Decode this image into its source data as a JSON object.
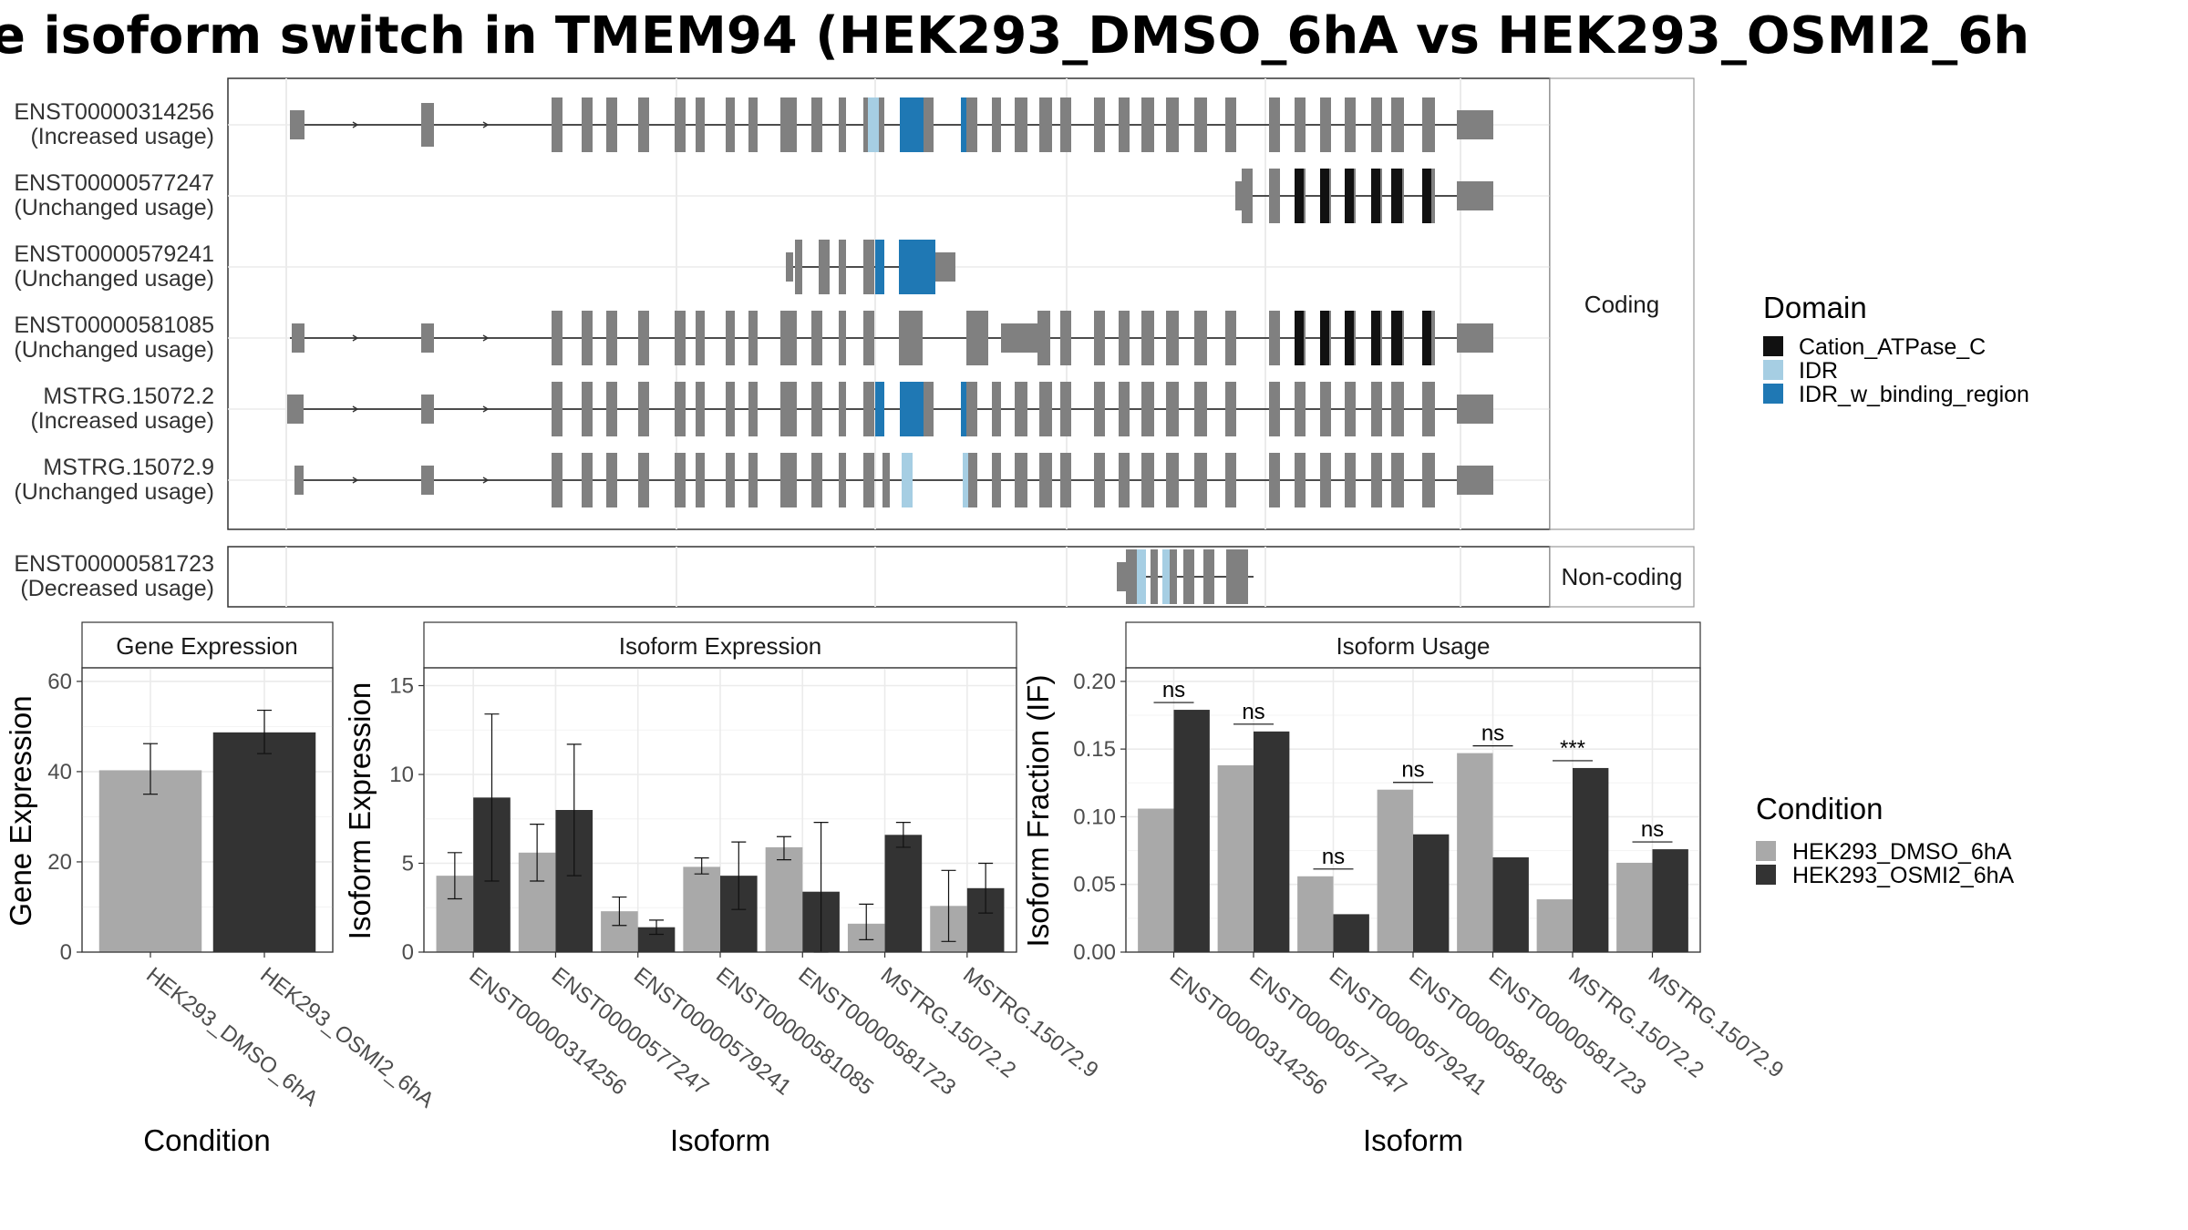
{
  "title": "e isoform switch in TMEM94 (HEK293_DMSO_6hA vs HEK293_OSMI2_6h",
  "transcripts": {
    "coding_label": "Coding",
    "noncoding_label": "Non-coding",
    "coding": [
      {
        "id": "ENST00000314256",
        "usage": "(Increased usage)"
      },
      {
        "id": "ENST00000577247",
        "usage": "(Unchanged usage)"
      },
      {
        "id": "ENST00000579241",
        "usage": "(Unchanged usage)"
      },
      {
        "id": "ENST00000581085",
        "usage": "(Unchanged usage)"
      },
      {
        "id": "MSTRG.15072.2",
        "usage": "(Increased usage)"
      },
      {
        "id": "MSTRG.15072.9",
        "usage": "(Unchanged usage)"
      }
    ],
    "noncoding": [
      {
        "id": "ENST00000581723",
        "usage": "(Decreased usage)"
      }
    ]
  },
  "domain_legend": {
    "title": "Domain",
    "items": [
      {
        "label": "Cation_ATPase_C",
        "color": "#111111"
      },
      {
        "label": "IDR",
        "color": "#a6cee3"
      },
      {
        "label": "IDR_w_binding_region",
        "color": "#1f78b4"
      }
    ]
  },
  "condition_legend": {
    "title": "Condition",
    "items": [
      {
        "label": "HEK293_DMSO_6hA",
        "color": "#a9a9a9"
      },
      {
        "label": "HEK293_OSMI2_6hA",
        "color": "#333333"
      }
    ]
  },
  "chart_data": [
    {
      "type": "bar",
      "title": "Gene Expression",
      "xlabel": "Condition",
      "ylabel": "Gene Expression",
      "categories": [
        "HEK293_DMSO_6hA",
        "HEK293_OSMI2_6hA"
      ],
      "values": [
        40.3,
        48.7
      ],
      "error_low": [
        35.0,
        44.0
      ],
      "error_high": [
        46.2,
        53.6
      ],
      "ylim": [
        0,
        63
      ],
      "yticks": [
        0,
        20,
        40,
        60
      ]
    },
    {
      "type": "bar",
      "title": "Isoform Expression",
      "xlabel": "Isoform",
      "ylabel": "Isoform Expression",
      "categories": [
        "ENST00000314256",
        "ENST00000577247",
        "ENST00000579241",
        "ENST00000581085",
        "ENST00000581723",
        "MSTRG.15072.2",
        "MSTRG.15072.9"
      ],
      "series": [
        {
          "name": "HEK293_DMSO_6hA",
          "values": [
            4.3,
            5.6,
            2.3,
            4.8,
            5.9,
            1.6,
            2.6
          ],
          "error_low": [
            3.0,
            4.0,
            1.5,
            4.4,
            5.2,
            0.7,
            0.6
          ],
          "error_high": [
            5.6,
            7.2,
            3.1,
            5.3,
            6.5,
            2.7,
            4.6
          ]
        },
        {
          "name": "HEK293_OSMI2_6hA",
          "values": [
            8.7,
            8.0,
            1.4,
            4.3,
            3.4,
            6.6,
            3.6
          ],
          "error_low": [
            4.0,
            4.3,
            1.0,
            2.4,
            0.0,
            5.9,
            2.2
          ],
          "error_high": [
            13.4,
            11.7,
            1.8,
            6.2,
            7.3,
            7.3,
            5.0
          ]
        }
      ],
      "ylim": [
        0,
        16
      ],
      "yticks": [
        0,
        5,
        10,
        15
      ]
    },
    {
      "type": "bar",
      "title": "Isoform Usage",
      "xlabel": "Isoform",
      "ylabel": "Isoform Fraction (IF)",
      "categories": [
        "ENST00000314256",
        "ENST00000577247",
        "ENST00000579241",
        "ENST00000581085",
        "ENST00000581723",
        "MSTRG.15072.2",
        "MSTRG.15072.9"
      ],
      "series": [
        {
          "name": "HEK293_DMSO_6hA",
          "values": [
            0.106,
            0.138,
            0.056,
            0.12,
            0.147,
            0.039,
            0.066
          ]
        },
        {
          "name": "HEK293_OSMI2_6hA",
          "values": [
            0.179,
            0.163,
            0.028,
            0.087,
            0.07,
            0.136,
            0.076
          ]
        }
      ],
      "significance": [
        "ns",
        "ns",
        "ns",
        "ns",
        "ns",
        "***",
        "ns"
      ],
      "ylim": [
        0,
        0.21
      ],
      "yticks": [
        "0.00",
        "0.05",
        "0.10",
        "0.15",
        "0.20"
      ]
    }
  ]
}
